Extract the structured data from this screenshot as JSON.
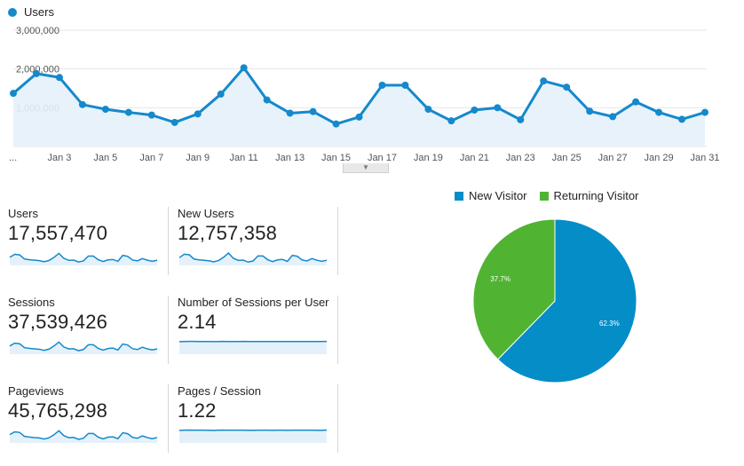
{
  "colors": {
    "line": "#1589cc",
    "fill": "#e4f1fa",
    "grid": "#e6e6e6",
    "new": "#058dc7",
    "returning": "#50b432"
  },
  "chart_data": [
    {
      "type": "area",
      "series": [
        {
          "name": "Users",
          "values": [
            1370000,
            1880000,
            1780000,
            1080000,
            960000,
            880000,
            810000,
            620000,
            840000,
            1350000,
            2030000,
            1200000,
            860000,
            900000,
            580000,
            760000,
            1580000,
            1580000,
            960000,
            660000,
            940000,
            1000000,
            690000,
            1690000,
            1530000,
            910000,
            770000,
            1150000,
            880000,
            700000,
            880000
          ]
        }
      ],
      "x": [
        "Jan 1",
        "Jan 2",
        "Jan 3",
        "Jan 4",
        "Jan 5",
        "Jan 6",
        "Jan 7",
        "Jan 8",
        "Jan 9",
        "Jan 10",
        "Jan 11",
        "Jan 12",
        "Jan 13",
        "Jan 14",
        "Jan 15",
        "Jan 16",
        "Jan 17",
        "Jan 18",
        "Jan 19",
        "Jan 20",
        "Jan 21",
        "Jan 22",
        "Jan 23",
        "Jan 24",
        "Jan 25",
        "Jan 26",
        "Jan 27",
        "Jan 28",
        "Jan 29",
        "Jan 30",
        "Jan 31"
      ],
      "x_tick_labels": [
        "...",
        "Jan 3",
        "Jan 5",
        "Jan 7",
        "Jan 9",
        "Jan 11",
        "Jan 13",
        "Jan 15",
        "Jan 17",
        "Jan 19",
        "Jan 21",
        "Jan 23",
        "Jan 25",
        "Jan 27",
        "Jan 29",
        "Jan 31"
      ],
      "y_tick_labels": [
        "3,000,000",
        "2,000,000",
        "1,000,000"
      ],
      "y_ticks": [
        3000000,
        2000000,
        1000000
      ],
      "ylim": [
        0,
        3000000
      ],
      "grid": true,
      "legend": "top-left"
    },
    {
      "type": "pie",
      "categories": [
        "New Visitor",
        "Returning Visitor"
      ],
      "values": [
        62.3,
        37.7
      ],
      "labels": [
        "62.3%",
        "37.7%"
      ],
      "legend": "top"
    }
  ],
  "legend_label": "Users",
  "metrics": [
    {
      "label": "Users",
      "value": "17,557,470",
      "spark": [
        1.37,
        1.88,
        1.78,
        1.08,
        0.96,
        0.88,
        0.81,
        0.62,
        0.84,
        1.35,
        2.03,
        1.2,
        0.86,
        0.9,
        0.58,
        0.76,
        1.58,
        1.58,
        0.96,
        0.66,
        0.94,
        1.0,
        0.69,
        1.69,
        1.53,
        0.91,
        0.77,
        1.15,
        0.88,
        0.7,
        0.88
      ],
      "range": [
        0,
        3
      ]
    },
    {
      "label": "New Users",
      "value": "12,757,358",
      "spark": [
        1.0,
        1.45,
        1.38,
        0.82,
        0.72,
        0.66,
        0.6,
        0.46,
        0.64,
        1.05,
        1.6,
        0.92,
        0.65,
        0.69,
        0.43,
        0.57,
        1.22,
        1.22,
        0.73,
        0.5,
        0.72,
        0.77,
        0.52,
        1.3,
        1.18,
        0.7,
        0.58,
        0.88,
        0.67,
        0.53,
        0.67
      ],
      "range": [
        0,
        2.3
      ]
    },
    {
      "label": "Sessions",
      "value": "37,539,426",
      "spark": [
        2.9,
        3.9,
        3.7,
        2.3,
        2.05,
        1.9,
        1.75,
        1.35,
        1.8,
        2.9,
        4.3,
        2.55,
        1.85,
        1.92,
        1.25,
        1.65,
        3.35,
        3.35,
        2.05,
        1.42,
        2.0,
        2.15,
        1.48,
        3.6,
        3.25,
        1.95,
        1.65,
        2.45,
        1.88,
        1.5,
        1.88
      ],
      "range": [
        0,
        6.3
      ]
    },
    {
      "label": "Number of Sessions per User",
      "value": "2.14",
      "spark": [
        2.12,
        2.14,
        2.15,
        2.15,
        2.14,
        2.14,
        2.13,
        2.12,
        2.14,
        2.15,
        2.14,
        2.13,
        2.14,
        2.15,
        2.13,
        2.13,
        2.14,
        2.14,
        2.13,
        2.13,
        2.14,
        2.14,
        2.13,
        2.14,
        2.14,
        2.13,
        2.14,
        2.14,
        2.13,
        2.13,
        2.16
      ],
      "range": [
        0,
        3.0
      ]
    },
    {
      "label": "Pageviews",
      "value": "45,765,298",
      "spark": [
        3.55,
        4.75,
        4.5,
        2.8,
        2.5,
        2.3,
        2.15,
        1.65,
        2.2,
        3.5,
        5.2,
        3.1,
        2.25,
        2.35,
        1.52,
        2.0,
        4.05,
        4.05,
        2.5,
        1.72,
        2.45,
        2.6,
        1.8,
        4.35,
        3.95,
        2.38,
        2.0,
        3.0,
        2.3,
        1.83,
        2.3
      ],
      "range": [
        0,
        7.6
      ]
    },
    {
      "label": "Pages / Session",
      "value": "1.22",
      "spark": [
        1.2,
        1.22,
        1.23,
        1.22,
        1.22,
        1.22,
        1.21,
        1.2,
        1.22,
        1.23,
        1.22,
        1.22,
        1.22,
        1.22,
        1.21,
        1.21,
        1.22,
        1.22,
        1.22,
        1.21,
        1.22,
        1.22,
        1.21,
        1.22,
        1.22,
        1.22,
        1.22,
        1.22,
        1.21,
        1.21,
        1.23
      ],
      "range": [
        0,
        1.7
      ]
    }
  ]
}
